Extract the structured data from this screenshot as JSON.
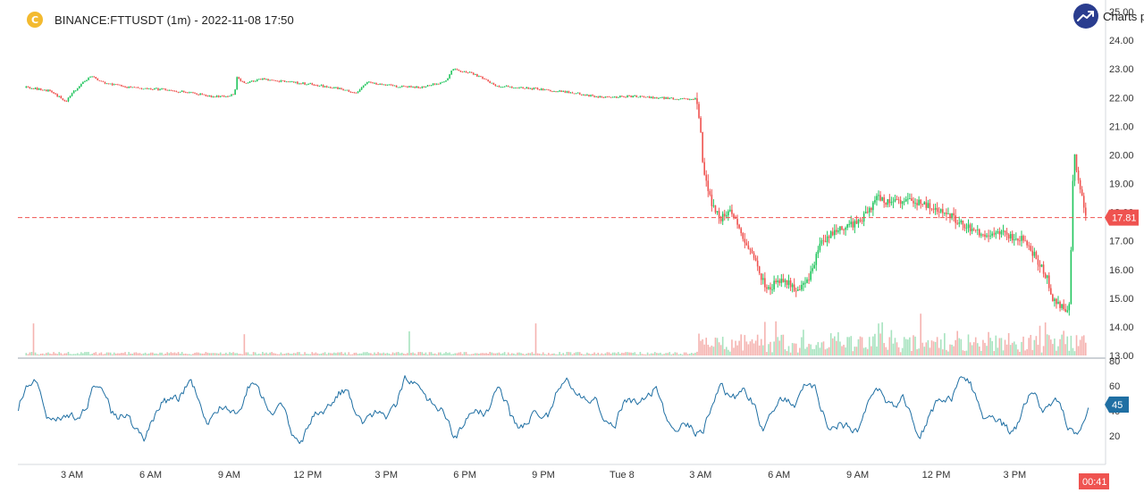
{
  "header": {
    "coin_icon": "bitcoin-like-coin-icon",
    "coin_glyph": "C",
    "symbol_text": "BINANCE:FTTUSDT (1m) - 2022-11-08 17:50",
    "brand_icon": "trend-up-arrow-icon",
    "brand_text": "Charts p"
  },
  "colors": {
    "up": "#26a69a",
    "up_bright": "#22c55e",
    "down": "#ef5350",
    "indicator_line": "#1f6fa3",
    "last_price_line": "#ef5350",
    "last_price_badge": "#ef5350",
    "indicator_badge": "#1f6fa3",
    "axis_text": "#333333",
    "brand_bg": "#2a3d8f"
  },
  "chart_data": {
    "type": "candlestick",
    "title": "BINANCE:FTTUSDT (1m) - 2022-11-08 17:50",
    "price_axis": {
      "ylim": [
        13.0,
        25.0
      ],
      "ticks": [
        "13.00",
        "14.00",
        "15.00",
        "16.00",
        "17.00",
        "18.00",
        "19.00",
        "20.00",
        "21.00",
        "22.00",
        "23.00",
        "24.00",
        "25.00"
      ]
    },
    "time_axis": {
      "ticks": [
        "3 AM",
        "6 AM",
        "9 AM",
        "12 PM",
        "3 PM",
        "6 PM",
        "9 PM",
        "Tue 8",
        "3 AM",
        "6 AM",
        "9 AM",
        "12 PM",
        "3 PM"
      ]
    },
    "last_price": 17.81,
    "last_price_label": "17.81",
    "countdown_label": "00:41",
    "price_path_hours": [
      1.0,
      1.5,
      2.0,
      2.5,
      3.0,
      3.5,
      4.0,
      5.0,
      6.0,
      7.0,
      8.0,
      8.6,
      8.95,
      9.05,
      9.3,
      10.0,
      11.0,
      12.0,
      13.0,
      13.6,
      14.0,
      15.0,
      16.0,
      17.0,
      17.3,
      17.6,
      18.0,
      18.5,
      19.0,
      20.0,
      21.0,
      22.0,
      23.0,
      24.0,
      25.0,
      26.0,
      26.6,
      26.65,
      26.75,
      26.85,
      27.0,
      27.2,
      27.5,
      28.0,
      28.3,
      28.8,
      29.0,
      29.3,
      29.6,
      30.0,
      30.5,
      30.9,
      31.3,
      31.8,
      32.5,
      33.0,
      33.5,
      34.0,
      35.0,
      35.5,
      36.0,
      36.5,
      37.0,
      37.5,
      38.0,
      38.5,
      39.0,
      39.5,
      39.8,
      40.0,
      40.2,
      40.5,
      40.7,
      40.85,
      41.0,
      41.2,
      41.5
    ],
    "price_path_values": [
      22.35,
      22.3,
      22.2,
      21.85,
      22.4,
      22.75,
      22.5,
      22.35,
      22.3,
      22.2,
      22.05,
      22.05,
      22.1,
      22.7,
      22.5,
      22.65,
      22.55,
      22.45,
      22.3,
      22.15,
      22.55,
      22.4,
      22.35,
      22.55,
      23.0,
      22.9,
      22.85,
      22.65,
      22.4,
      22.35,
      22.25,
      22.15,
      22.0,
      22.05,
      22.0,
      21.95,
      21.95,
      21.5,
      20.8,
      19.6,
      19.0,
      18.2,
      17.8,
      18.0,
      17.2,
      16.5,
      15.9,
      15.2,
      15.55,
      15.6,
      15.2,
      15.65,
      16.8,
      17.3,
      17.55,
      17.85,
      18.5,
      18.35,
      18.35,
      18.25,
      18.05,
      17.75,
      17.5,
      17.15,
      17.3,
      17.2,
      17.05,
      16.5,
      16.05,
      15.7,
      15.0,
      14.7,
      14.55,
      14.75,
      20.15,
      18.95,
      17.81
    ],
    "indicator_axis": {
      "ylim": [
        0,
        80
      ],
      "ticks": [
        "20",
        "40",
        "60",
        "80"
      ]
    },
    "indicator_last": 45,
    "indicator_last_label": "45",
    "grid": false
  }
}
